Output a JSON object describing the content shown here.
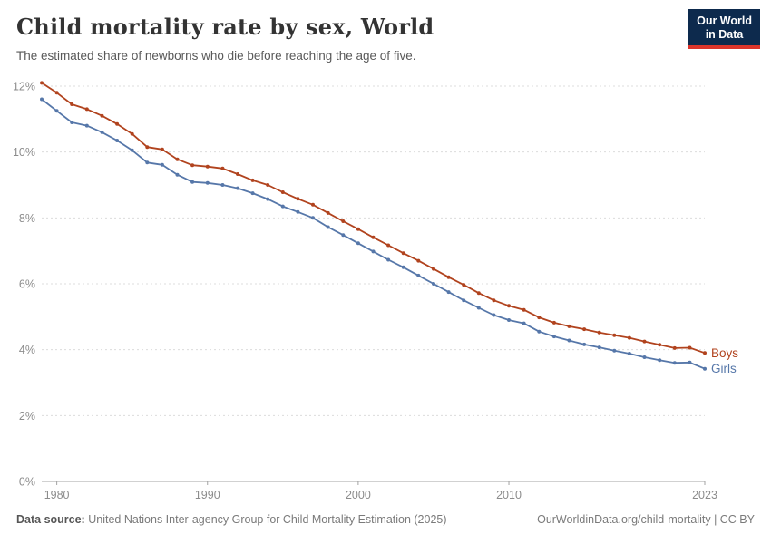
{
  "header": {
    "title": "Child mortality rate by sex, World",
    "subtitle": "The estimated share of newborns who die before reaching the age of five.",
    "logo": {
      "line1": "Our World",
      "line2": "in Data",
      "bg_color": "#0d2a4d",
      "accent_color": "#dc352b"
    }
  },
  "chart_data": {
    "type": "line",
    "title": "Child mortality rate by sex, World",
    "xlabel": "",
    "ylabel": "",
    "ylim": [
      0,
      12
    ],
    "yticks": [
      0,
      2,
      4,
      6,
      8,
      10,
      12
    ],
    "ytick_suffix": "%",
    "xticks": [
      1980,
      1990,
      2000,
      2010,
      2023
    ],
    "grid": "dashed-horizontal",
    "legend_position": "end-of-line",
    "grid_color": "#dcdcdc",
    "axis_color": "#a3a3a3",
    "tick_label_color": "#8c8c8c",
    "x": [
      1979,
      1980,
      1981,
      1982,
      1983,
      1984,
      1985,
      1986,
      1987,
      1988,
      1989,
      1990,
      1991,
      1992,
      1993,
      1994,
      1995,
      1996,
      1997,
      1998,
      1999,
      2000,
      2001,
      2002,
      2003,
      2004,
      2005,
      2006,
      2007,
      2008,
      2009,
      2010,
      2011,
      2012,
      2013,
      2014,
      2015,
      2016,
      2017,
      2018,
      2019,
      2020,
      2021,
      2022,
      2023
    ],
    "series": [
      {
        "name": "Boys",
        "color": "#B1431E",
        "values": [
          12.1,
          11.8,
          11.45,
          11.3,
          11.1,
          10.85,
          10.55,
          10.15,
          10.08,
          9.78,
          9.6,
          9.56,
          9.5,
          9.33,
          9.14,
          9.0,
          8.78,
          8.58,
          8.4,
          8.15,
          7.9,
          7.66,
          7.41,
          7.17,
          6.93,
          6.7,
          6.45,
          6.2,
          5.97,
          5.72,
          5.5,
          5.33,
          5.21,
          4.98,
          4.82,
          4.71,
          4.62,
          4.52,
          4.44,
          4.36,
          4.25,
          4.15,
          4.05,
          4.06,
          3.9
        ]
      },
      {
        "name": "Girls",
        "color": "#5677A9",
        "values": [
          11.6,
          11.25,
          10.9,
          10.8,
          10.6,
          10.35,
          10.05,
          9.68,
          9.61,
          9.31,
          9.09,
          9.06,
          9.0,
          8.9,
          8.75,
          8.57,
          8.35,
          8.18,
          8.0,
          7.72,
          7.48,
          7.23,
          6.98,
          6.73,
          6.5,
          6.25,
          6.0,
          5.75,
          5.5,
          5.27,
          5.05,
          4.9,
          4.8,
          4.55,
          4.4,
          4.28,
          4.16,
          4.07,
          3.97,
          3.88,
          3.77,
          3.68,
          3.6,
          3.61,
          3.42
        ]
      }
    ]
  },
  "footer": {
    "source_label": "Data source:",
    "source_text": "United Nations Inter-agency Group for Child Mortality Estimation (2025)",
    "credit": "OurWorldinData.org/child-mortality | CC BY"
  }
}
